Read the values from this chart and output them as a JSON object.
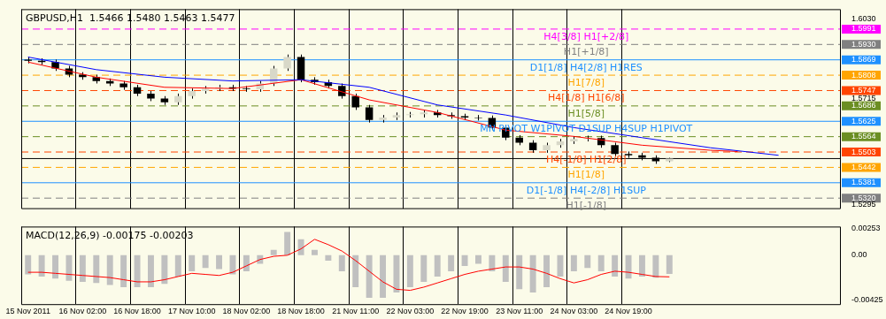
{
  "chart_data": [
    {
      "type": "candlestick",
      "title": "GBPUSD,H1  1.5466 1.5480 1.5463 1.5477",
      "categories": [
        null,
        null,
        null,
        null,
        null,
        null,
        null,
        null,
        null,
        null,
        null,
        null,
        null,
        null,
        null,
        null,
        null,
        null,
        null,
        null,
        null,
        null,
        null,
        null,
        null,
        null,
        null,
        null,
        null,
        null,
        null,
        null,
        null,
        null,
        null,
        null,
        null,
        null,
        null,
        null,
        null,
        null,
        null,
        null,
        null,
        null,
        null,
        null,
        null,
        null,
        null,
        null,
        null,
        null,
        null,
        null,
        null,
        null,
        null,
        null
      ],
      "ohlc": [
        [
          1.587,
          1.588,
          1.5855,
          1.5865
        ],
        [
          1.5865,
          1.5875,
          1.585,
          1.586
        ],
        [
          1.586,
          1.587,
          1.5825,
          1.5835
        ],
        [
          1.5835,
          1.5845,
          1.58,
          1.581
        ],
        [
          1.581,
          1.582,
          1.579,
          1.58
        ],
        [
          1.58,
          1.581,
          1.5775,
          1.5785
        ],
        [
          1.5785,
          1.5795,
          1.5765,
          1.5775
        ],
        [
          1.5775,
          1.5785,
          1.575,
          1.576
        ],
        [
          1.576,
          1.577,
          1.5725,
          1.5735
        ],
        [
          1.5735,
          1.5745,
          1.5705,
          1.5715
        ],
        [
          1.5715,
          1.5725,
          1.569,
          1.57
        ],
        [
          1.57,
          1.5735,
          1.569,
          1.5725
        ],
        [
          1.5725,
          1.5755,
          1.5715,
          1.5745
        ],
        [
          1.5745,
          1.5765,
          1.5735,
          1.5755
        ],
        [
          1.5755,
          1.577,
          1.5745,
          1.576
        ],
        [
          1.576,
          1.577,
          1.5745,
          1.5755
        ],
        [
          1.5755,
          1.5765,
          1.5742,
          1.5752
        ],
        [
          1.5752,
          1.5785,
          1.5742,
          1.5775
        ],
        [
          1.5775,
          1.5845,
          1.5765,
          1.5835
        ],
        [
          1.5835,
          1.589,
          1.5825,
          1.588
        ],
        [
          1.588,
          1.589,
          1.578,
          1.579
        ],
        [
          1.579,
          1.58,
          1.577,
          1.578
        ],
        [
          1.578,
          1.579,
          1.5755,
          1.5765
        ],
        [
          1.5765,
          1.5775,
          1.5715,
          1.5725
        ],
        [
          1.5725,
          1.5735,
          1.567,
          1.568
        ],
        [
          1.568,
          1.569,
          1.562,
          1.563
        ],
        [
          1.563,
          1.565,
          1.562,
          1.564
        ],
        [
          1.564,
          1.566,
          1.563,
          1.565
        ],
        [
          1.565,
          1.5662,
          1.564,
          1.5653
        ],
        [
          1.5653,
          1.567,
          1.564,
          1.566
        ],
        [
          1.566,
          1.567,
          1.564,
          1.565
        ],
        [
          1.565,
          1.566,
          1.5635,
          1.5645
        ],
        [
          1.5645,
          1.5655,
          1.563,
          1.564
        ],
        [
          1.564,
          1.565,
          1.5628,
          1.5638
        ],
        [
          1.5638,
          1.5648,
          1.559,
          1.56
        ],
        [
          1.56,
          1.561,
          1.555,
          1.556
        ],
        [
          1.556,
          1.557,
          1.553,
          1.554
        ],
        [
          1.554,
          1.555,
          1.55,
          1.551
        ],
        [
          1.551,
          1.554,
          1.55,
          1.553
        ],
        [
          1.553,
          1.5555,
          1.552,
          1.5545
        ],
        [
          1.5545,
          1.5565,
          1.5535,
          1.5555
        ],
        [
          1.5555,
          1.5568,
          1.5545,
          1.5558
        ],
        [
          1.5558,
          1.5568,
          1.552,
          1.553
        ],
        [
          1.553,
          1.554,
          1.5485,
          1.5495
        ],
        [
          1.5495,
          1.5505,
          1.548,
          1.549
        ],
        [
          1.549,
          1.55,
          1.547,
          1.548
        ],
        [
          1.548,
          1.549,
          1.5456,
          1.5466
        ],
        [
          1.5466,
          1.548,
          1.5463,
          1.5477
        ],
        null,
        null,
        null,
        null,
        null,
        null,
        null,
        null,
        null,
        null,
        null,
        null
      ],
      "series": [
        {
          "type": "line",
          "color": "#0000ff",
          "values": [
            1.588,
            null,
            null,
            null,
            null,
            1.583,
            null,
            null,
            null,
            null,
            1.58,
            null,
            null,
            null,
            null,
            1.5785,
            null,
            null,
            null,
            null,
            1.579,
            null,
            null,
            null,
            null,
            1.576,
            null,
            null,
            null,
            null,
            1.569,
            null,
            null,
            null,
            null,
            1.565,
            null,
            null,
            null,
            null,
            1.56,
            null,
            null,
            null,
            null,
            1.556,
            null,
            null,
            null,
            null,
            1.552,
            null,
            null,
            null,
            null,
            1.549,
            null,
            null,
            null,
            null
          ]
        },
        {
          "type": "line",
          "color": "#ff0000",
          "values": [
            1.586,
            null,
            null,
            null,
            null,
            1.58,
            null,
            null,
            null,
            null,
            1.576,
            null,
            null,
            null,
            null,
            1.5755,
            null,
            null,
            null,
            null,
            1.579,
            null,
            null,
            null,
            null,
            1.571,
            null,
            null,
            null,
            null,
            1.566,
            null,
            null,
            null,
            null,
            1.559,
            null,
            null,
            null,
            null,
            1.5565,
            null,
            null,
            null,
            null,
            1.553,
            null,
            null,
            null,
            null,
            1.551,
            null,
            1.5505,
            null,
            null,
            null,
            null,
            null,
            null,
            null
          ]
        }
      ],
      "ylim": [
        1.528,
        1.607
      ],
      "yticks": [
        {
          "value": 1.603,
          "label": "1.6030"
        },
        {
          "value": 1.5991,
          "label": "1.5991"
        },
        {
          "value": 1.593,
          "label": "1.5930"
        },
        {
          "value": 1.5869,
          "label": "1.5869"
        },
        {
          "value": 1.5808,
          "label": "1.5808"
        },
        {
          "value": 1.5747,
          "label": "1.5747"
        },
        {
          "value": 1.5715,
          "label": "1.5715"
        },
        {
          "value": 1.5686,
          "label": "1.5686"
        },
        {
          "value": 1.5625,
          "label": "1.5625"
        },
        {
          "value": 1.5564,
          "label": "1.5564"
        },
        {
          "value": 1.5503,
          "label": "1.5503"
        },
        {
          "value": 1.5442,
          "label": "1.5442"
        },
        {
          "value": 1.5381,
          "label": "1.5381"
        },
        {
          "value": 1.532,
          "label": "1.5320"
        },
        {
          "value": 1.5295,
          "label": "1.5295"
        }
      ],
      "ref_lines": [
        {
          "axis": "y",
          "value": 1.5991,
          "label": "H4[3/8] H1[+2/8]",
          "color": "#ff00ff",
          "line_style": "dashed"
        },
        {
          "axis": "y",
          "value": 1.593,
          "label": "H1[+1/8]",
          "color": "#808080",
          "line_style": "dashed"
        },
        {
          "axis": "y",
          "value": 1.5869,
          "label": "D1[1/8] H4[2/8] H1RES",
          "color": "#1e90ff",
          "line_style": "solid"
        },
        {
          "axis": "y",
          "value": 1.5808,
          "label": "H1[7/8]",
          "color": "#ffa500",
          "line_style": "dashed"
        },
        {
          "axis": "y",
          "value": 1.5747,
          "label": "H4[1/8] H1[6/8]",
          "color": "#ff4500",
          "line_style": "dashed"
        },
        {
          "axis": "y",
          "value": 1.5686,
          "label": "H1[5/8]",
          "color": "#6b8e23",
          "line_style": "dashed"
        },
        {
          "axis": "y",
          "value": 1.5625,
          "label": "MN PIVOT W1PIVOT D1SUP H4SUP H1PIVOT",
          "color": "#1e90ff",
          "line_style": "solid"
        },
        {
          "axis": "y",
          "value": 1.5564,
          "label": null,
          "color": "#6b8e23",
          "line_style": "dashed"
        },
        {
          "axis": "y",
          "value": 1.5503,
          "label": "H4[-1/8] H1[2/8]",
          "color": "#ff4500",
          "line_style": "dashed"
        },
        {
          "axis": "y",
          "value": 1.5477,
          "label": null,
          "color": "#000000",
          "line_style": "solid"
        },
        {
          "axis": "y",
          "value": 1.5442,
          "label": "H1[1/8]",
          "color": "#ffa500",
          "line_style": "dashed"
        },
        {
          "axis": "y",
          "value": 1.5381,
          "label": "D1[-1/8] H4[-2/8] H1SUP",
          "color": "#1e90ff",
          "line_style": "solid"
        },
        {
          "axis": "y",
          "value": 1.532,
          "label": "H1[-1/8]",
          "color": "#808080",
          "line_style": "dashed"
        }
      ],
      "grid": "x",
      "tick_labels": "y"
    },
    {
      "type": "bar",
      "title": "MACD(12,26,9) -0.00175 -0.00203",
      "categories": [
        "15 Nov 2011",
        null,
        null,
        null,
        "16 Nov 02:00",
        null,
        null,
        null,
        "16 Nov 18:00",
        null,
        null,
        null,
        "17 Nov 10:00",
        null,
        null,
        null,
        "18 Nov 02:00",
        null,
        null,
        null,
        "18 Nov 18:00",
        null,
        null,
        null,
        "21 Nov 11:00",
        null,
        null,
        null,
        "22 Nov 03:00",
        null,
        null,
        null,
        "22 Nov 19:00",
        null,
        null,
        null,
        "23 Nov 11:00",
        null,
        null,
        null,
        "24 Nov 03:00",
        null,
        null,
        null,
        "24 Nov 19:00",
        null,
        null,
        null,
        null,
        null,
        null,
        null,
        null,
        null,
        null,
        null,
        null,
        null,
        null,
        null
      ],
      "series": [
        {
          "type": "bar",
          "color": "#c0c0c0",
          "values": [
            -0.0018,
            -0.002,
            -0.0022,
            -0.0024,
            -0.0025,
            -0.0026,
            -0.0028,
            -0.003,
            -0.003,
            -0.003,
            -0.0027,
            -0.002,
            -0.0015,
            -0.0012,
            -0.0013,
            -0.0018,
            -0.0015,
            -0.0008,
            0.0005,
            0.0022,
            0.0015,
            0.0005,
            -0.0005,
            -0.0015,
            -0.003,
            -0.004,
            -0.004,
            -0.0035,
            -0.003,
            -0.0025,
            -0.002,
            -0.0015,
            -0.001,
            -0.0008,
            -0.0015,
            -0.0025,
            -0.0032,
            -0.0035,
            -0.003,
            -0.002,
            -0.0015,
            -0.0012,
            -0.0015,
            -0.002,
            -0.0022,
            -0.002,
            -0.0021,
            -0.00175,
            null,
            null,
            null,
            null,
            null,
            null,
            null,
            null,
            null,
            null,
            null,
            null
          ]
        },
        {
          "type": "line",
          "color": "#ff0000",
          "values": [
            -0.0016,
            -0.0016,
            -0.0017,
            -0.0018,
            -0.0019,
            -0.002,
            -0.0021,
            -0.0023,
            -0.0025,
            -0.0025,
            -0.0023,
            -0.002,
            -0.0017,
            -0.0018,
            -0.0019,
            -0.0016,
            -0.001,
            -0.0004,
            -0.0001,
            0,
            0.0006,
            0.0015,
            0.001,
            0.0004,
            -0.0005,
            -0.0015,
            -0.0025,
            -0.0032,
            -0.0033,
            -0.003,
            -0.0026,
            -0.0022,
            -0.0018,
            -0.0015,
            -0.0013,
            -0.0011,
            -0.0011,
            -0.0013,
            -0.0017,
            -0.0022,
            -0.0026,
            -0.0023,
            -0.0018,
            -0.0015,
            -0.0016,
            -0.0018,
            -0.002,
            -0.00203,
            null,
            null,
            null,
            null,
            null,
            null,
            null,
            null,
            null,
            null,
            null,
            null
          ]
        }
      ],
      "ylim": [
        -0.0046,
        0.0027
      ],
      "yticks": [
        {
          "value": 0.00253,
          "label": "0.00253"
        },
        {
          "value": 0,
          "label": "0.00"
        },
        {
          "value": -0.00425,
          "label": "-0.00425"
        }
      ],
      "grid": "x"
    }
  ]
}
